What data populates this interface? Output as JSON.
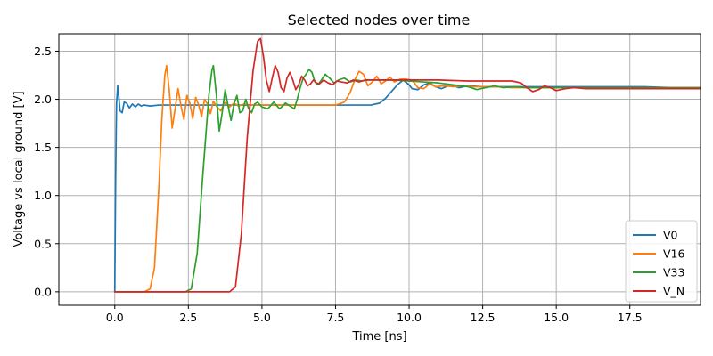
{
  "chart_data": {
    "type": "line",
    "title": "Selected nodes over time",
    "xlabel": "Time [ns]",
    "ylabel": "Voltage vs local ground [V]",
    "xlim": [
      -1.9,
      19.9
    ],
    "ylim": [
      -0.14,
      2.68
    ],
    "x_ticks": [
      0.0,
      2.5,
      5.0,
      7.5,
      10.0,
      12.5,
      15.0,
      17.5
    ],
    "x_tick_labels": [
      "0.0",
      "2.5",
      "5.0",
      "7.5",
      "10.0",
      "12.5",
      "15.0",
      "17.5"
    ],
    "y_ticks": [
      0.0,
      0.5,
      1.0,
      1.5,
      2.0,
      2.5
    ],
    "y_tick_labels": [
      "0.0",
      "0.5",
      "1.0",
      "1.5",
      "2.0",
      "2.5"
    ],
    "grid": true,
    "legend_position": "lower-right",
    "series": [
      {
        "name": "V0",
        "color": "#1f77b4",
        "x": [
          0.0,
          0.03,
          0.06,
          0.1,
          0.13,
          0.18,
          0.25,
          0.32,
          0.4,
          0.5,
          0.6,
          0.7,
          0.8,
          0.9,
          1.0,
          1.2,
          1.5,
          2.0,
          3.0,
          4.0,
          5.0,
          6.0,
          7.0,
          8.0,
          8.7,
          9.0,
          9.2,
          9.4,
          9.6,
          9.8,
          10.0,
          10.1,
          10.3,
          10.5,
          10.7,
          10.9,
          11.1,
          11.4,
          11.7,
          12.0,
          12.5,
          13.0,
          13.5,
          14.0,
          14.5,
          15.0,
          16.0,
          17.0,
          18.0,
          19.0,
          19.9
        ],
        "y": [
          0.0,
          1.2,
          1.95,
          2.14,
          2.05,
          1.88,
          1.86,
          1.97,
          1.96,
          1.91,
          1.95,
          1.92,
          1.95,
          1.93,
          1.94,
          1.93,
          1.94,
          1.94,
          1.94,
          1.94,
          1.94,
          1.94,
          1.94,
          1.94,
          1.94,
          1.96,
          2.01,
          2.08,
          2.15,
          2.2,
          2.15,
          2.11,
          2.1,
          2.15,
          2.17,
          2.13,
          2.11,
          2.15,
          2.12,
          2.14,
          2.13,
          2.13,
          2.13,
          2.13,
          2.13,
          2.13,
          2.13,
          2.13,
          2.13,
          2.12,
          2.12
        ]
      },
      {
        "name": "V16",
        "color": "#ff7f0e",
        "x": [
          0.0,
          1.0,
          1.2,
          1.35,
          1.5,
          1.6,
          1.7,
          1.76,
          1.85,
          1.95,
          2.05,
          2.15,
          2.25,
          2.35,
          2.45,
          2.55,
          2.65,
          2.75,
          2.85,
          2.95,
          3.05,
          3.15,
          3.25,
          3.35,
          3.45,
          3.6,
          3.75,
          3.9,
          4.05,
          4.2,
          4.4,
          4.6,
          4.8,
          5.0,
          5.5,
          6.0,
          7.0,
          7.5,
          7.8,
          8.0,
          8.15,
          8.3,
          8.45,
          8.6,
          8.75,
          8.9,
          9.05,
          9.2,
          9.35,
          9.5,
          9.7,
          9.9,
          10.1,
          10.3,
          10.5,
          10.7,
          10.9,
          11.2,
          11.5,
          11.8,
          12.2,
          12.6,
          13.0,
          13.5,
          14.0,
          15.0,
          16.0,
          17.0,
          18.0,
          19.0,
          19.9
        ],
        "y": [
          0.0,
          0.0,
          0.03,
          0.25,
          1.1,
          1.8,
          2.25,
          2.35,
          2.1,
          1.7,
          1.9,
          2.11,
          1.93,
          1.79,
          2.04,
          1.96,
          1.8,
          2.02,
          1.94,
          1.82,
          2.0,
          1.95,
          1.85,
          1.98,
          1.93,
          1.88,
          1.97,
          1.92,
          1.96,
          1.93,
          1.95,
          1.94,
          1.94,
          1.94,
          1.94,
          1.94,
          1.94,
          1.94,
          1.97,
          2.07,
          2.2,
          2.29,
          2.26,
          2.14,
          2.18,
          2.24,
          2.16,
          2.19,
          2.23,
          2.18,
          2.21,
          2.21,
          2.2,
          2.12,
          2.11,
          2.16,
          2.13,
          2.14,
          2.13,
          2.14,
          2.13,
          2.13,
          2.13,
          2.12,
          2.12,
          2.12,
          2.12,
          2.12,
          2.12,
          2.12,
          2.12
        ]
      },
      {
        "name": "V33",
        "color": "#2ca02c",
        "x": [
          0.0,
          2.4,
          2.6,
          2.8,
          3.0,
          3.2,
          3.3,
          3.35,
          3.45,
          3.55,
          3.65,
          3.75,
          3.85,
          3.95,
          4.05,
          4.15,
          4.25,
          4.35,
          4.45,
          4.55,
          4.65,
          4.75,
          4.85,
          5.0,
          5.2,
          5.4,
          5.6,
          5.8,
          6.0,
          6.1,
          6.2,
          6.3,
          6.4,
          6.5,
          6.6,
          6.7,
          6.8,
          6.9,
          7.0,
          7.15,
          7.3,
          7.45,
          7.6,
          7.8,
          8.0,
          8.2,
          8.4,
          8.6,
          8.8,
          9.0,
          9.5,
          10.0,
          10.5,
          11.0,
          11.5,
          12.0,
          12.3,
          12.6,
          12.9,
          13.2,
          13.6,
          14.0,
          15.0,
          16.0,
          17.0,
          18.0,
          19.0,
          19.9
        ],
        "y": [
          0.0,
          0.0,
          0.03,
          0.4,
          1.25,
          2.05,
          2.3,
          2.35,
          2.05,
          1.67,
          1.86,
          2.1,
          1.93,
          1.78,
          1.95,
          2.04,
          1.86,
          1.88,
          2.0,
          1.9,
          1.86,
          1.95,
          1.97,
          1.92,
          1.9,
          1.97,
          1.9,
          1.96,
          1.92,
          1.9,
          2.0,
          2.12,
          2.22,
          2.26,
          2.31,
          2.28,
          2.18,
          2.15,
          2.19,
          2.26,
          2.22,
          2.17,
          2.2,
          2.22,
          2.18,
          2.2,
          2.19,
          2.2,
          2.2,
          2.2,
          2.2,
          2.19,
          2.18,
          2.17,
          2.15,
          2.13,
          2.1,
          2.12,
          2.14,
          2.12,
          2.13,
          2.12,
          2.12,
          2.12,
          2.12,
          2.12,
          2.12,
          2.12
        ]
      },
      {
        "name": "V_N",
        "color": "#d62728",
        "x": [
          0.0,
          3.9,
          4.1,
          4.3,
          4.5,
          4.7,
          4.85,
          4.95,
          5.05,
          5.15,
          5.25,
          5.35,
          5.45,
          5.55,
          5.65,
          5.75,
          5.85,
          5.95,
          6.05,
          6.15,
          6.25,
          6.35,
          6.45,
          6.55,
          6.65,
          6.75,
          6.85,
          6.95,
          7.1,
          7.25,
          7.4,
          7.55,
          7.7,
          7.9,
          8.1,
          8.3,
          8.5,
          9.0,
          10.0,
          11.0,
          12.0,
          13.0,
          13.5,
          13.8,
          14.0,
          14.2,
          14.4,
          14.6,
          14.8,
          15.0,
          15.3,
          15.6,
          16.0,
          17.0,
          18.0,
          19.0,
          19.9
        ],
        "y": [
          0.0,
          0.0,
          0.05,
          0.6,
          1.6,
          2.3,
          2.6,
          2.63,
          2.45,
          2.2,
          2.08,
          2.22,
          2.35,
          2.28,
          2.12,
          2.08,
          2.22,
          2.28,
          2.2,
          2.1,
          2.15,
          2.24,
          2.2,
          2.14,
          2.16,
          2.2,
          2.17,
          2.16,
          2.2,
          2.17,
          2.15,
          2.19,
          2.18,
          2.17,
          2.2,
          2.18,
          2.2,
          2.2,
          2.2,
          2.2,
          2.19,
          2.19,
          2.19,
          2.17,
          2.12,
          2.08,
          2.1,
          2.14,
          2.12,
          2.09,
          2.11,
          2.12,
          2.11,
          2.11,
          2.11,
          2.11,
          2.11
        ]
      }
    ]
  }
}
